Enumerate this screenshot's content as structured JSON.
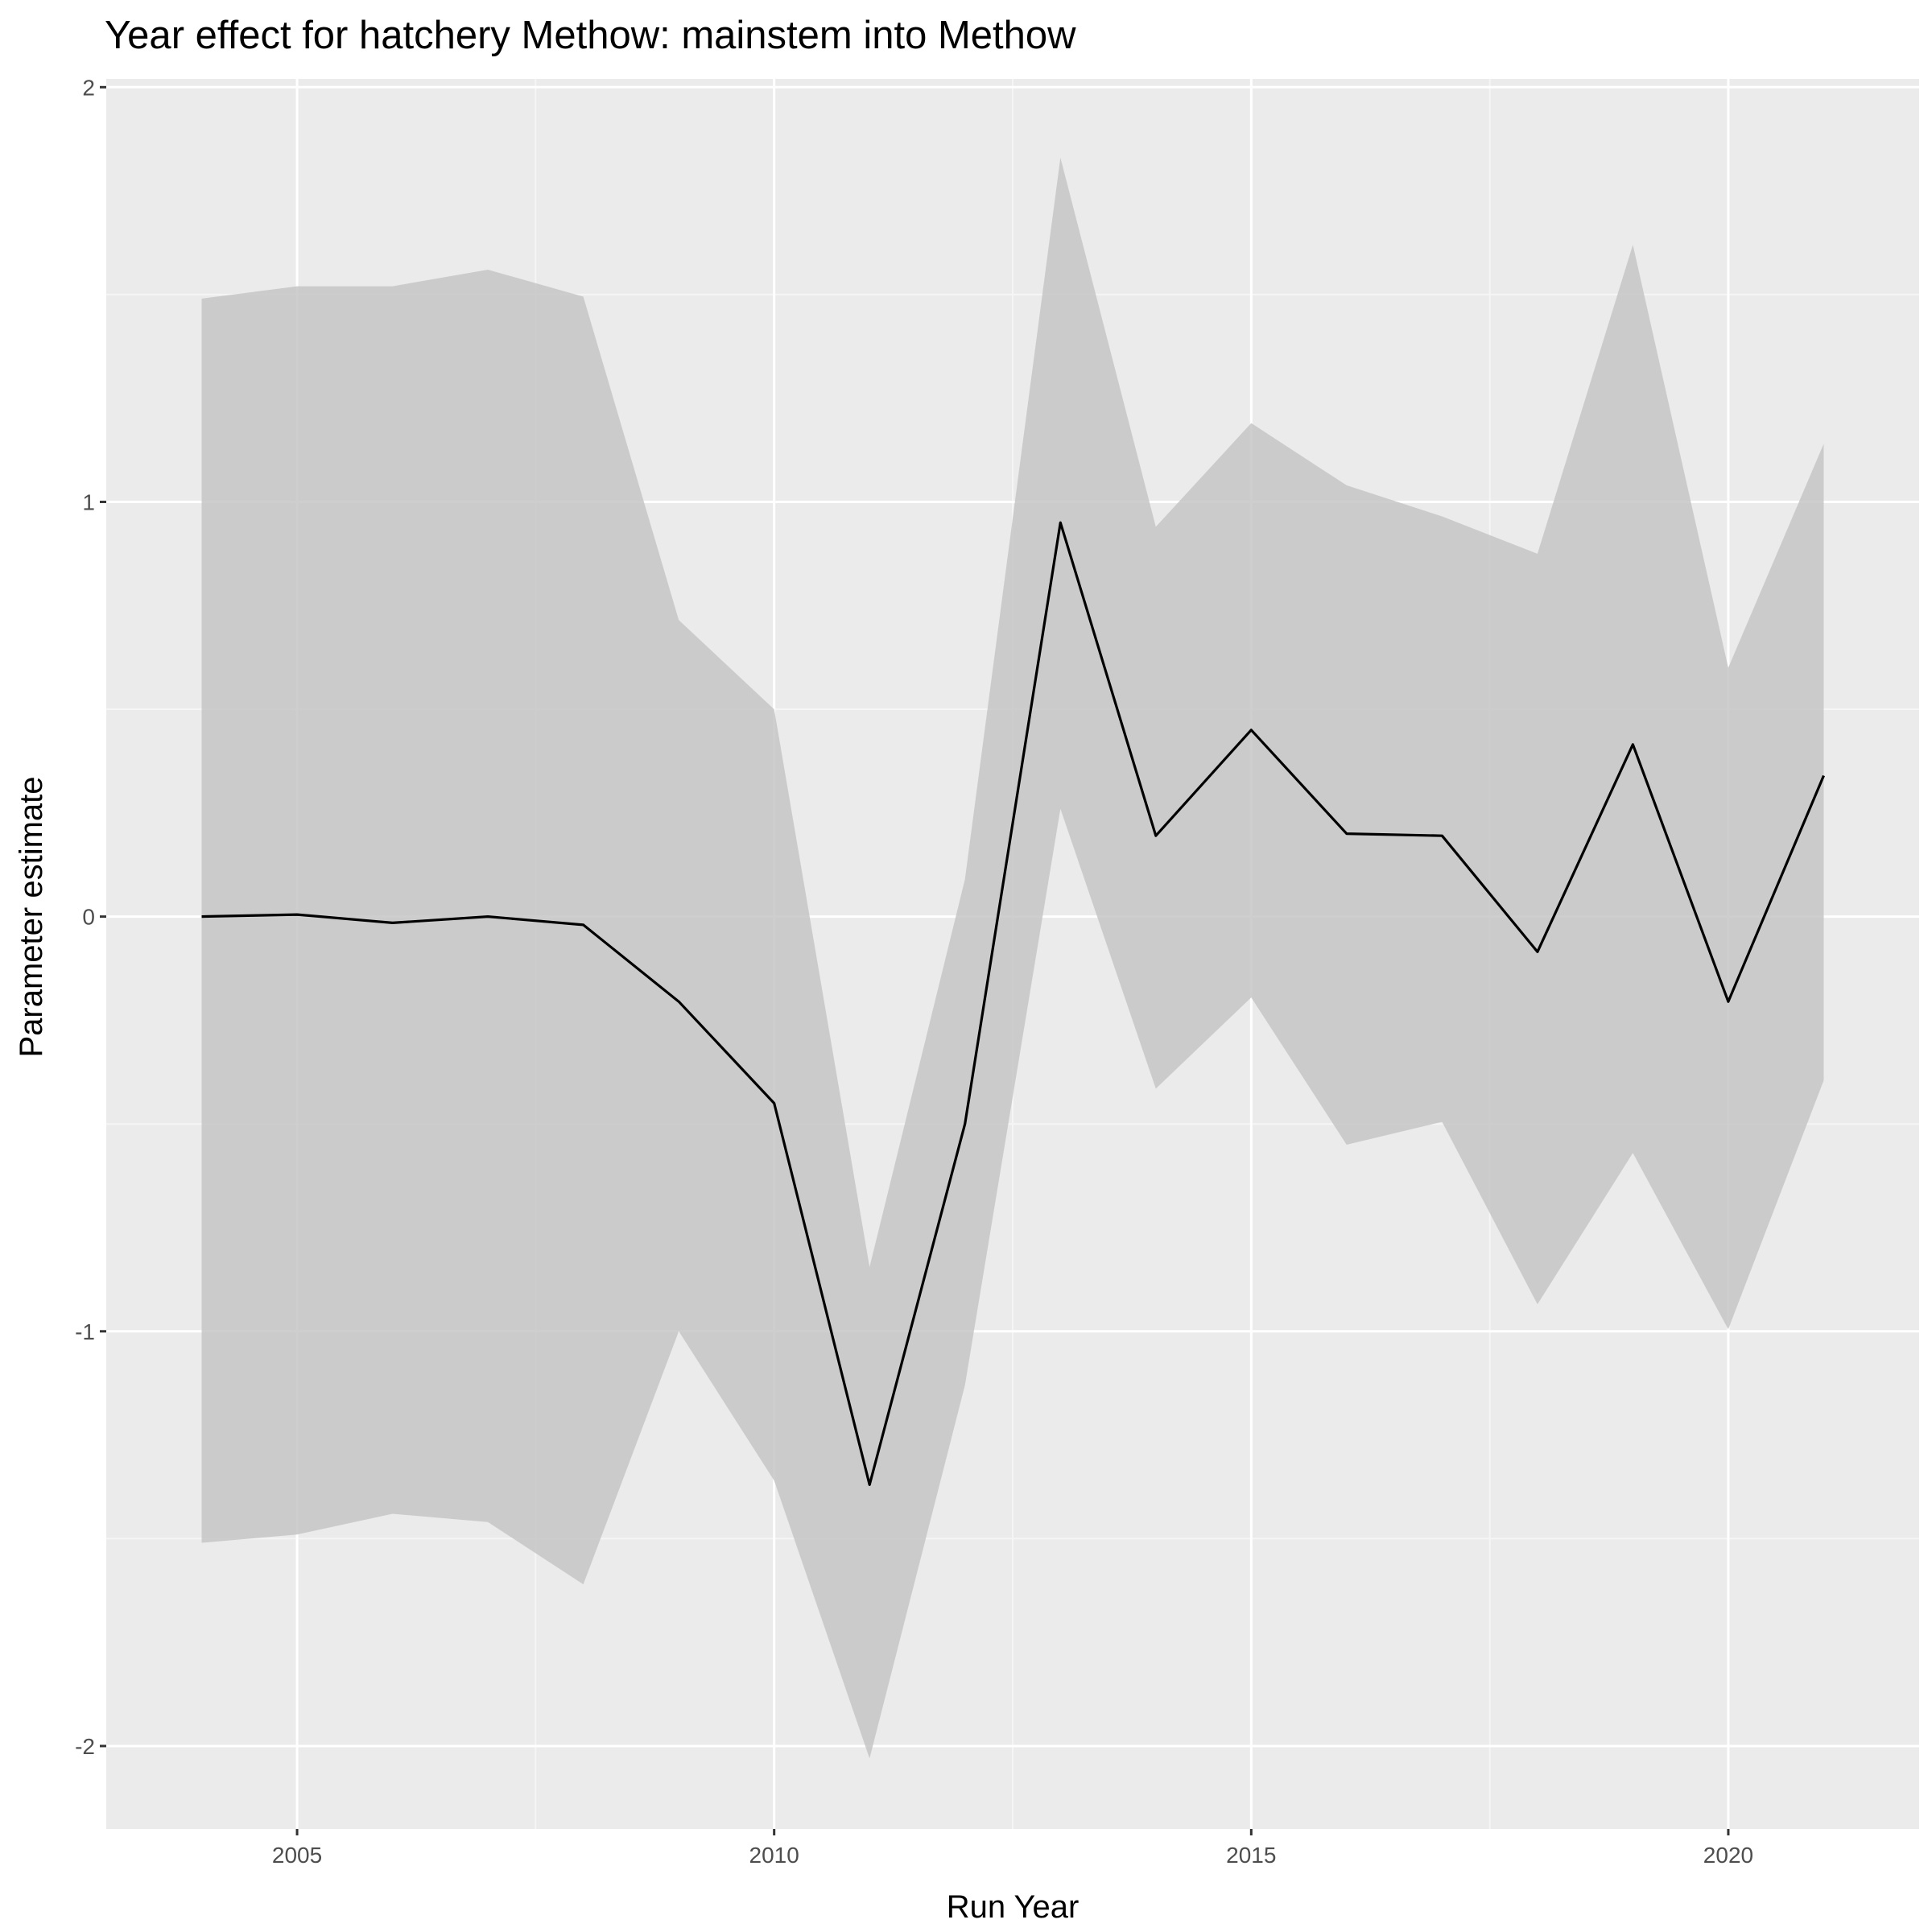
{
  "chart_data": {
    "type": "line",
    "title": "Year effect for hatchery Methow: mainstem into Methow",
    "xlabel": "Run Year",
    "ylabel": "Parameter estimate",
    "xlim": [
      2003.0,
      2022.0
    ],
    "ylim": [
      -2.2,
      2.02
    ],
    "x_ticks": [
      2005,
      2010,
      2015,
      2020
    ],
    "x_tick_labels": [
      "2005",
      "2010",
      "2015",
      "2020"
    ],
    "y_ticks": [
      -2,
      -1,
      0,
      1,
      2
    ],
    "y_tick_labels": [
      "-2",
      "-1",
      "0",
      "1",
      "2"
    ],
    "grid": true,
    "legend": "none",
    "colors": {
      "panel_background": "#EBEBEB",
      "grid_major": "#FFFFFF",
      "grid_minor": "#F5F5F5",
      "ribbon": "#C6C6C6",
      "line": "#000000"
    },
    "x": [
      2004,
      2005,
      2006,
      2007,
      2008,
      2009,
      2010,
      2011,
      2012,
      2013,
      2014,
      2015,
      2016,
      2017,
      2018,
      2019,
      2020,
      2021
    ],
    "series": [
      {
        "values": [
          0.0,
          0.005,
          -0.015,
          0.0,
          -0.02,
          -0.205,
          -0.45,
          -1.37,
          -0.5,
          0.95,
          0.195,
          0.45,
          0.2,
          0.195,
          -0.085,
          0.415,
          -0.205,
          0.34
        ],
        "lower": [
          -1.51,
          -1.49,
          -1.44,
          -1.46,
          -1.61,
          -1.0,
          -1.36,
          -2.03,
          -1.13,
          0.26,
          -0.415,
          -0.195,
          -0.55,
          -0.495,
          -0.935,
          -0.57,
          -0.995,
          -0.395
        ],
        "upper": [
          1.49,
          1.52,
          1.52,
          1.56,
          1.495,
          0.715,
          0.5,
          -0.845,
          0.09,
          1.83,
          0.94,
          1.19,
          1.04,
          0.965,
          0.875,
          1.62,
          0.6,
          1.14
        ]
      }
    ]
  }
}
